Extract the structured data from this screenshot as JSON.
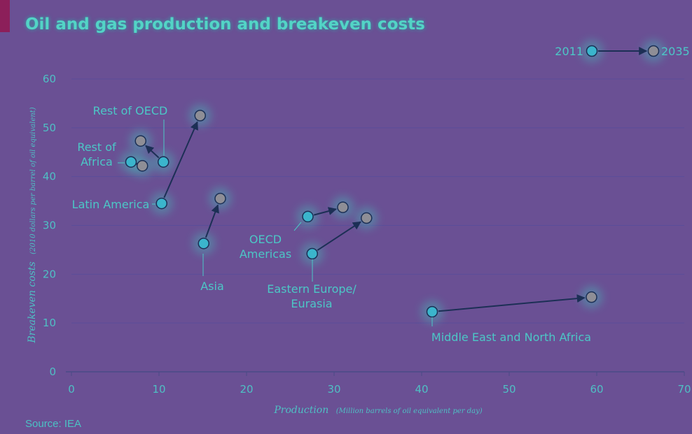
{
  "title": "Oil and gas production and breakeven costs",
  "source": "Source: IEA",
  "colors": {
    "background": "#6a5094",
    "accent": "#8c1f5a",
    "marker_2011": "#3bb5cc",
    "marker_2035": "#8e8e96",
    "text": "#4cc7c6"
  },
  "legend": {
    "start": "2011",
    "end": "2035",
    "placement": "top-right"
  },
  "chart_data": {
    "type": "scatter",
    "title": "Oil and gas production and breakeven costs",
    "xlabel": "Production",
    "xlabel_sub": "(Million barrels of oil equivalent per day)",
    "ylabel": "Breakeven costs",
    "ylabel_sub": "(2010 dollars per barrel of oil equivalent)",
    "xlim": [
      0,
      70
    ],
    "ylim": [
      0,
      60
    ],
    "xticks": [
      "0",
      "10",
      "20",
      "30",
      "40",
      "50",
      "60",
      "70"
    ],
    "yticks": [
      "0",
      "10",
      "20",
      "30",
      "40",
      "50",
      "60"
    ],
    "grid": "horizontal",
    "series": [
      {
        "name": "Rest of OECD",
        "label_lines": [
          "Rest of OECD"
        ],
        "start": [
          10.5,
          43
        ],
        "end": [
          7.9,
          47.3
        ]
      },
      {
        "name": "Rest of Africa",
        "label_lines": [
          "Rest of",
          "Africa"
        ],
        "start": [
          6.8,
          43
        ],
        "end": [
          8.1,
          42.2
        ]
      },
      {
        "name": "Latin America",
        "label_lines": [
          "Latin America"
        ],
        "start": [
          10.3,
          34.5
        ],
        "end": [
          14.7,
          52.5
        ]
      },
      {
        "name": "Asia",
        "label_lines": [
          "Asia"
        ],
        "start": [
          15.1,
          26.3
        ],
        "end": [
          17.0,
          35.5
        ]
      },
      {
        "name": "OECD Americas",
        "label_lines": [
          "OECD",
          "Americas"
        ],
        "start": [
          27.0,
          31.8
        ],
        "end": [
          31.0,
          33.7
        ]
      },
      {
        "name": "Eastern Europe/Eurasia",
        "label_lines": [
          "Eastern Europe/",
          "Eurasia"
        ],
        "start": [
          27.5,
          24.2
        ],
        "end": [
          33.7,
          31.5
        ]
      },
      {
        "name": "Middle East and North Africa",
        "label_lines": [
          "Middle East and North Africa"
        ],
        "start": [
          41.2,
          12.3
        ],
        "end": [
          59.4,
          15.3
        ]
      }
    ]
  }
}
